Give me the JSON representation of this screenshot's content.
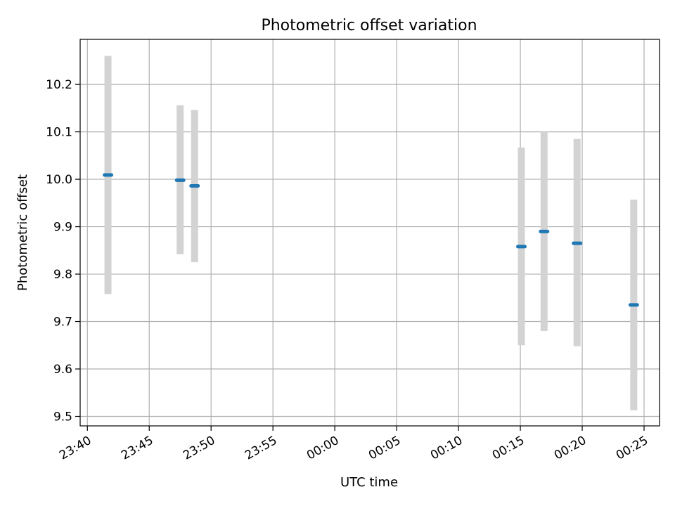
{
  "chart_data": {
    "type": "scatter",
    "title": "Photometric offset variation",
    "xlabel": "UTC time",
    "ylabel": "Photometric offset",
    "grid": true,
    "legend": "none",
    "colors": {
      "marker": "#1f77b4",
      "errorbar": "#d3d3d3",
      "grid": "#b0b0b0",
      "axes": "#000000"
    },
    "xlim": [
      "23:39:25",
      "00:26:15"
    ],
    "ylim": [
      9.48,
      10.295
    ],
    "x_ticks": [
      "23:40",
      "23:45",
      "23:50",
      "23:55",
      "00:00",
      "00:05",
      "00:10",
      "00:15",
      "00:20",
      "00:25"
    ],
    "y_ticks": [
      9.5,
      9.6,
      9.7,
      9.8,
      9.9,
      10.0,
      10.1,
      10.2
    ],
    "points": [
      {
        "x": "23:41:40",
        "y": 10.009,
        "ylow": 9.758,
        "yhigh": 10.26
      },
      {
        "x": "23:47:30",
        "y": 9.998,
        "ylow": 9.842,
        "yhigh": 10.156
      },
      {
        "x": "23:48:40",
        "y": 9.986,
        "ylow": 9.825,
        "yhigh": 10.146
      },
      {
        "x": "00:15:05",
        "y": 9.858,
        "ylow": 9.65,
        "yhigh": 10.067
      },
      {
        "x": "00:16:55",
        "y": 9.89,
        "ylow": 9.68,
        "yhigh": 10.1
      },
      {
        "x": "00:19:35",
        "y": 9.865,
        "ylow": 9.648,
        "yhigh": 10.085
      },
      {
        "x": "00:24:10",
        "y": 9.735,
        "ylow": 9.513,
        "yhigh": 9.957
      }
    ]
  }
}
